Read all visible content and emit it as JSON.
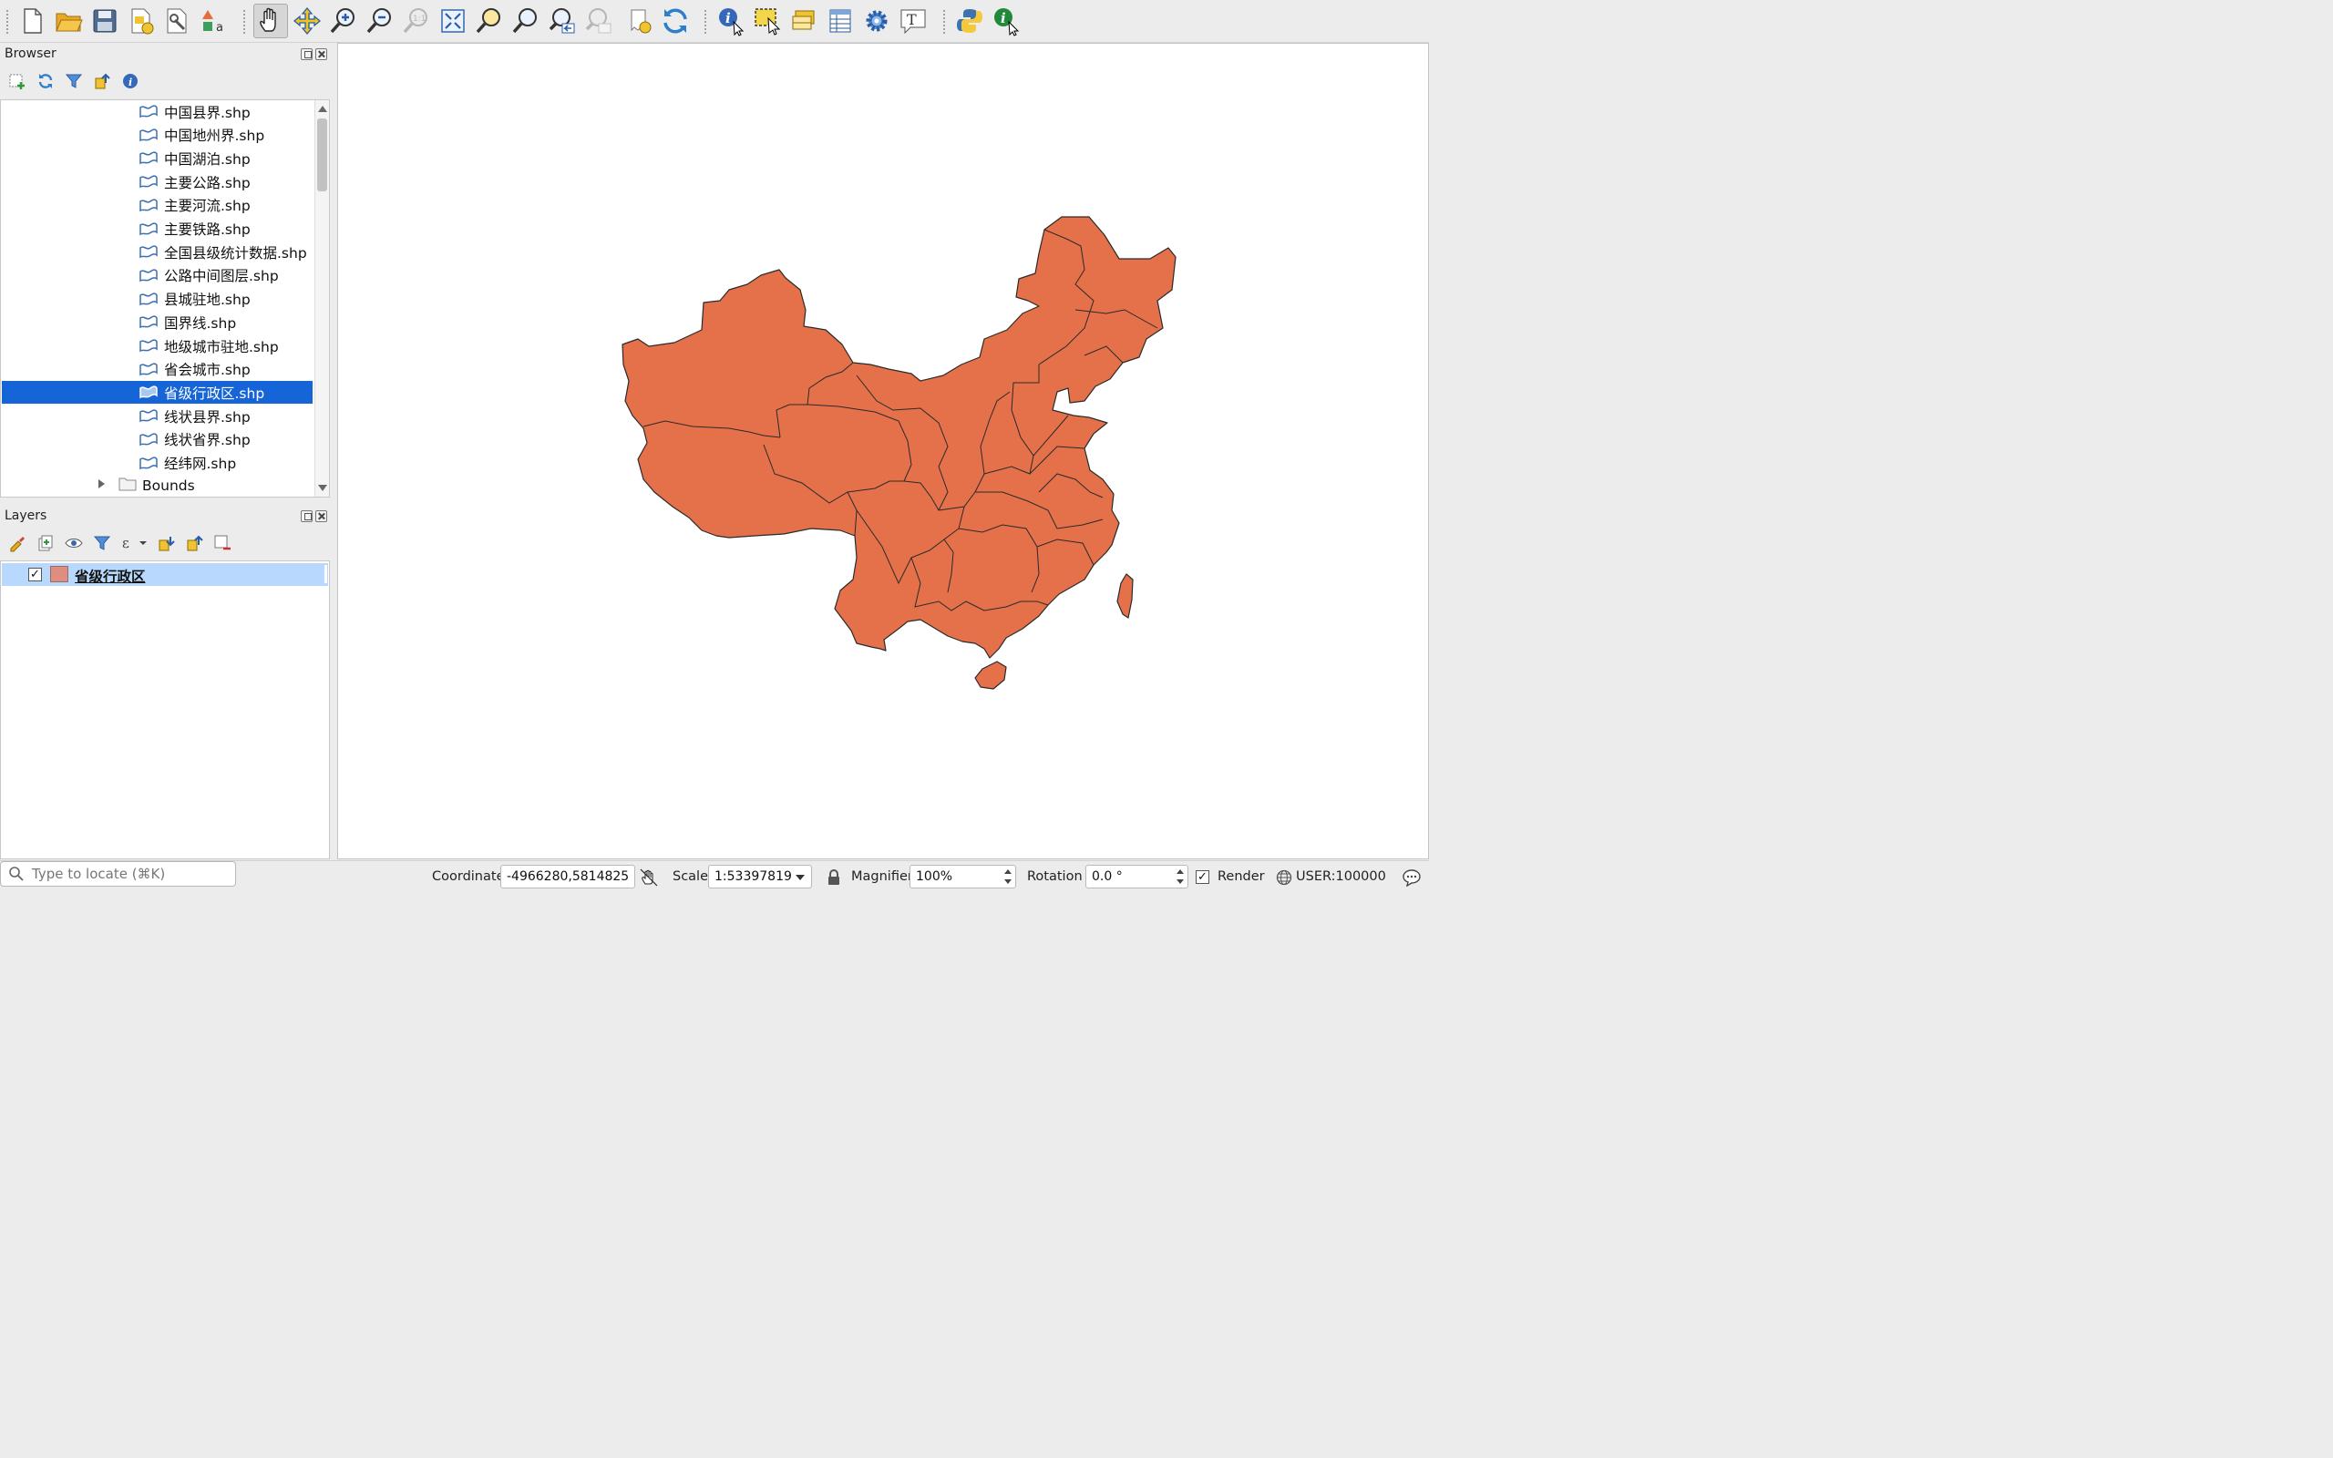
{
  "toolbar": {
    "buttons": [
      "new-project-icon",
      "open-project-icon",
      "save-project-icon",
      "new-print-layout-icon",
      "layout-manager-icon",
      "style-manager-icon",
      "pan-map-icon",
      "pan-to-selection-icon",
      "zoom-in-icon",
      "zoom-out-icon",
      "zoom-native-icon",
      "zoom-full-icon",
      "zoom-to-selection-icon",
      "zoom-to-layer-icon",
      "zoom-last-icon",
      "zoom-next-icon",
      "new-bookmark-icon",
      "refresh-icon",
      "identify-icon",
      "select-feature-icon",
      "open-attribute-table-icon",
      "statistics-icon",
      "settings-gear-icon",
      "text-annotation-icon",
      "python-icon",
      "info-plugin-icon"
    ]
  },
  "browser": {
    "title": "Browser",
    "files": [
      {
        "label": "中国县界.shp"
      },
      {
        "label": "中国地州界.shp"
      },
      {
        "label": "中国湖泊.shp"
      },
      {
        "label": "主要公路.shp"
      },
      {
        "label": "主要河流.shp"
      },
      {
        "label": "主要铁路.shp"
      },
      {
        "label": "全国县级统计数据.shp"
      },
      {
        "label": "公路中间图层.shp"
      },
      {
        "label": "县城驻地.shp"
      },
      {
        "label": "国界线.shp"
      },
      {
        "label": "地级城市驻地.shp"
      },
      {
        "label": "省会城市.shp"
      },
      {
        "label": "省级行政区.shp",
        "selected": true
      },
      {
        "label": "线状县界.shp"
      },
      {
        "label": "线状省界.shp"
      },
      {
        "label": "经纬网.shp"
      }
    ],
    "folder": "Bounds"
  },
  "layers": {
    "title": "Layers",
    "items": [
      {
        "name": "省级行政区",
        "visible": true,
        "swatch_color": "#dd8e80"
      }
    ]
  },
  "map": {
    "fill_color": "#e5714a",
    "stroke_color": "#2a2a2a",
    "background": "#ffffff"
  },
  "status": {
    "locator_placeholder": "Type to locate (⌘K)",
    "coordinate_label": "Coordinate",
    "coordinate_value": "-4966280,5814825",
    "scale_label": "Scale",
    "scale_value": "1:53397819",
    "magnifier_label": "Magnifier",
    "magnifier_value": "100%",
    "rotation_label": "Rotation",
    "rotation_value": "0.0 °",
    "render_label": "Render",
    "render_checked": true,
    "crs": "USER:100000"
  }
}
